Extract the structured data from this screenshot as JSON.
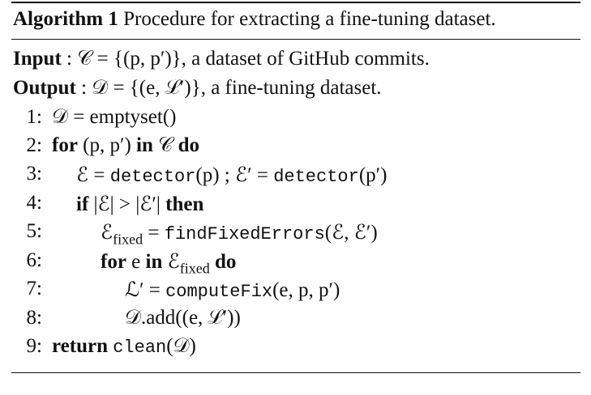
{
  "algorithm": {
    "number_label": "Algorithm 1",
    "caption": "Procedure for extracting a fine-tuning dataset.",
    "input_label": "Input",
    "input_text": ": 𝒞 = {(p, p′)}, a dataset of GitHub commits.",
    "output_label": "Output",
    "output_text": ": 𝒟 = {(e, ℒ′)}, a fine-tuning dataset.",
    "lines": [
      {
        "num": "1:",
        "text": "𝒟 = emptyset()"
      },
      {
        "num": "2:",
        "kw1": "for",
        "mid": " (p, p′) ",
        "kw2": "in",
        "mid2": " 𝒞 ",
        "kw3": "do"
      },
      {
        "num": "3:",
        "a": "ℰ = ",
        "tt1": "detector",
        "b": "(p) ; ℰ′ = ",
        "tt2": "detector",
        "c": "(p′)"
      },
      {
        "num": "4:",
        "kw1": "if",
        "mid": " |ℰ| > |ℰ′| ",
        "kw2": "then"
      },
      {
        "num": "5:",
        "a": "ℰ",
        "sub": "fixed",
        "b": " = ",
        "tt1": "findFixedErrors",
        "c": "(ℰ, ℰ′)"
      },
      {
        "num": "6:",
        "kw1": "for",
        "mid": " e ",
        "kw2": "in",
        "mid2": " ℰ",
        "sub": "fixed",
        "kw3": "do"
      },
      {
        "num": "7:",
        "a": "ℒ′ = ",
        "tt1": "computeFix",
        "c": "(e, p, p′)"
      },
      {
        "num": "8:",
        "text": "𝒟.add((e, ℒ′))"
      },
      {
        "num": "9:",
        "kw1": "return",
        "tt1": "clean",
        "c": "(𝒟)"
      }
    ]
  }
}
